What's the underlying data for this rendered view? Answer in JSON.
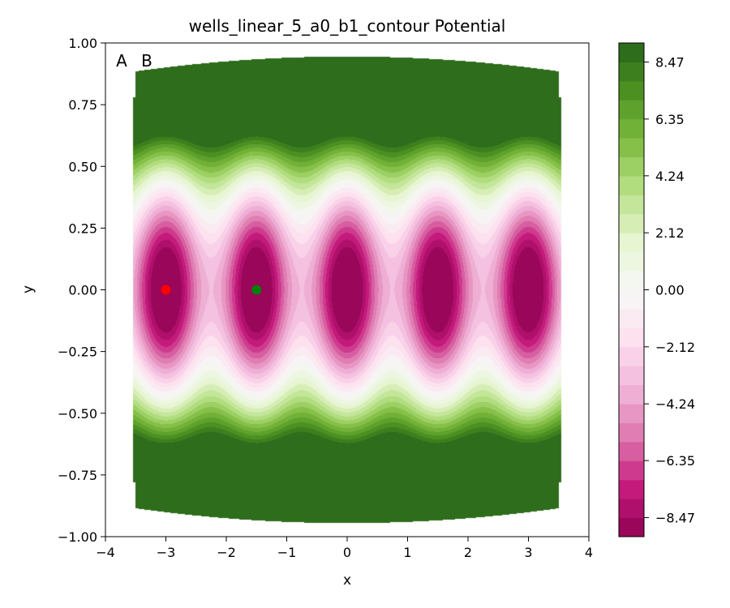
{
  "chart_data": {
    "type": "heatmap",
    "title": "wells_linear_5_a0_b1_contour Potential",
    "xlabel": "x",
    "ylabel": "y",
    "xlim": [
      -4,
      4
    ],
    "ylim": [
      -1,
      1
    ],
    "x_ticks": [
      -4,
      -3,
      -2,
      -1,
      0,
      1,
      2,
      3,
      4
    ],
    "x_tick_labels": [
      "−4",
      "−3",
      "−2",
      "−1",
      "0",
      "1",
      "2",
      "3",
      "4"
    ],
    "y_ticks": [
      1.0,
      0.75,
      0.5,
      0.25,
      0.0,
      -0.25,
      -0.5,
      -0.75,
      -1.0
    ],
    "y_tick_labels": [
      "1.00",
      "0.75",
      "0.50",
      "0.25",
      "0.00",
      "−0.25",
      "−0.50",
      "−0.75",
      "−1.00"
    ],
    "colormap": "PiYG",
    "color_range": [
      -9.18,
      9.18
    ],
    "colorbar_ticks": [
      8.47,
      6.35,
      4.24,
      2.12,
      0.0,
      -2.12,
      -4.24,
      -6.35,
      -8.47
    ],
    "colorbar_tick_labels": [
      "8.47",
      "6.35",
      "4.24",
      "2.12",
      "0.00",
      "−2.12",
      "−4.24",
      "−6.35",
      "−8.47"
    ],
    "wells": [
      {
        "x": -3.0,
        "y": 0.0
      },
      {
        "x": -1.5,
        "y": 0.0
      },
      {
        "x": 0.0,
        "y": 0.0
      },
      {
        "x": 1.5,
        "y": 0.0
      },
      {
        "x": 3.0,
        "y": 0.0
      }
    ],
    "points": [
      {
        "name": "A",
        "x": -3.0,
        "y": 0.0,
        "color": "#ff0000"
      },
      {
        "name": "B",
        "x": -1.5,
        "y": 0.0,
        "color": "#008000"
      }
    ],
    "domain_x": [
      -3.5,
      3.5
    ],
    "domain_y": [
      -0.9,
      0.9
    ]
  },
  "legend_labels": {
    "a": "A",
    "b": "B"
  },
  "colors": {
    "a": "#ff0000",
    "b": "#008000"
  }
}
